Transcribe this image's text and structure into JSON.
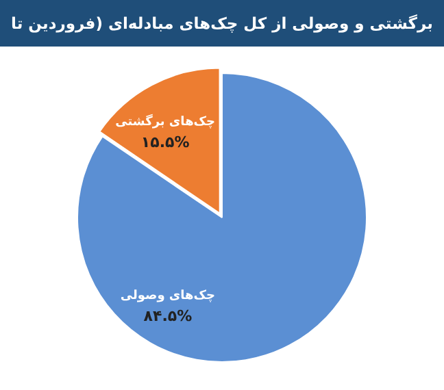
{
  "chart_data": {
    "type": "pie",
    "title": "برگشتی و وصولی از کل چک‌های مبادله‌ای (فروردین تا",
    "categories": [
      "چک‌های وصولی",
      "چک‌های برگشتی"
    ],
    "values": [
      84.5,
      15.5
    ],
    "colors": [
      "#5b8fd3",
      "#ed7d31"
    ],
    "value_labels": [
      "۸۴.۵%",
      "۱۵.۵%"
    ],
    "legend": false
  }
}
